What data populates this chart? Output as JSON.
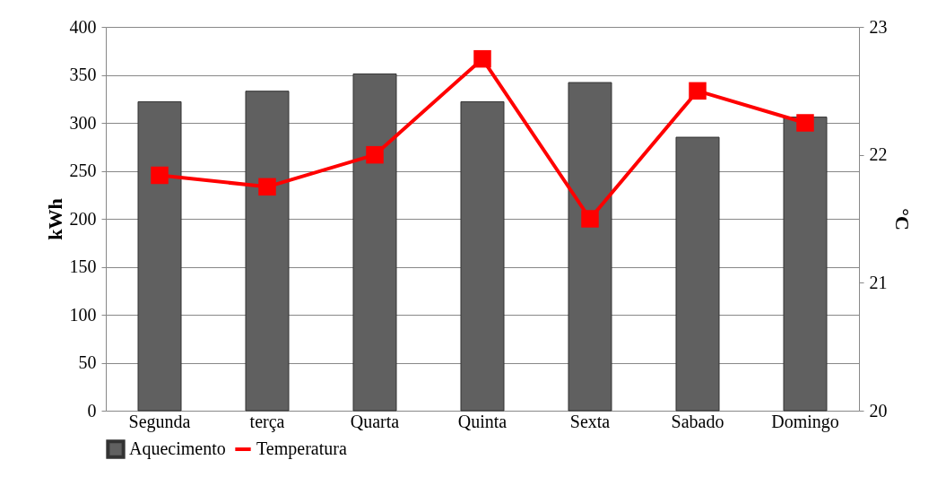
{
  "chart_data": {
    "type": "bar",
    "categories": [
      "Segunda",
      "terça",
      "Quarta",
      "Quinta",
      "Sexta",
      "Sabado",
      "Domingo"
    ],
    "series": [
      {
        "name": "Aquecimento",
        "color": "#606060",
        "values": [
          322,
          333,
          351,
          322,
          342,
          285,
          306
        ]
      },
      {
        "name": "Temperatura",
        "type": "line",
        "axis": "y2",
        "color": "#ff0000",
        "values": [
          21.84,
          21.75,
          22.0,
          22.75,
          21.5,
          22.5,
          22.25
        ]
      }
    ],
    "ylabel": "kWh",
    "y2label": "°C",
    "ylim": [
      0,
      400
    ],
    "yticks": [
      0,
      50,
      100,
      150,
      200,
      250,
      300,
      350,
      400
    ],
    "y2lim": [
      20,
      23
    ],
    "y2ticks": [
      20,
      21,
      22,
      23
    ],
    "grid": "y",
    "legend": "bottom",
    "marker": "square",
    "line_style": "solid"
  }
}
